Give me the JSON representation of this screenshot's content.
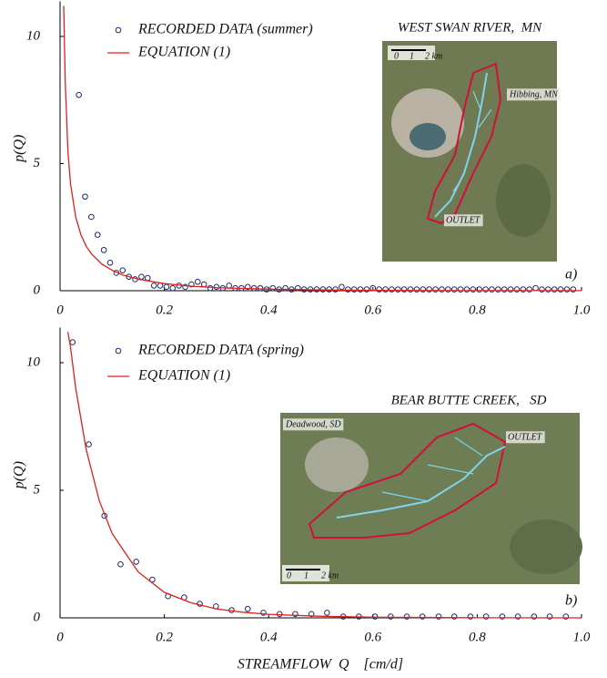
{
  "chart_data": [
    {
      "type": "line",
      "ylabel": "p(Q)",
      "panel_label": "a)",
      "xlim": [
        0,
        1
      ],
      "ylim": [
        0,
        11.2
      ],
      "xticks": [
        0,
        0.2,
        0.4,
        0.6,
        0.8,
        {
          "value": 1,
          "label": "1.0"
        }
      ],
      "yticks": [
        0,
        5,
        10
      ],
      "series": [
        {
          "name": "RECORDED DATA (summer)",
          "mode": "markers",
          "color": "#1f2a6b",
          "x": [
            0.036,
            0.048,
            0.06,
            0.072,
            0.084,
            0.096,
            0.108,
            0.12,
            0.132,
            0.144,
            0.156,
            0.168,
            0.18,
            0.192,
            0.204,
            0.216,
            0.228,
            0.24,
            0.252,
            0.264,
            0.276,
            0.288,
            0.3,
            0.312,
            0.324,
            0.336,
            0.348,
            0.36,
            0.372,
            0.384,
            0.396,
            0.408,
            0.42,
            0.432,
            0.444,
            0.456,
            0.468,
            0.48,
            0.492,
            0.504,
            0.516,
            0.528,
            0.54,
            0.552,
            0.564,
            0.576,
            0.588,
            0.6,
            0.612,
            0.624,
            0.636,
            0.648,
            0.66,
            0.672,
            0.684,
            0.696,
            0.708,
            0.72,
            0.732,
            0.744,
            0.756,
            0.768,
            0.78,
            0.792,
            0.804,
            0.816,
            0.828,
            0.84,
            0.852,
            0.864,
            0.876,
            0.888,
            0.9,
            0.912,
            0.924,
            0.936,
            0.948,
            0.96,
            0.972,
            0.984
          ],
          "values": [
            7.7,
            3.7,
            2.9,
            2.2,
            1.6,
            1.1,
            0.7,
            0.8,
            0.55,
            0.45,
            0.55,
            0.5,
            0.2,
            0.2,
            0.15,
            0.1,
            0.2,
            0.15,
            0.25,
            0.35,
            0.25,
            0.1,
            0.15,
            0.1,
            0.2,
            0.1,
            0.1,
            0.15,
            0.1,
            0.1,
            0.05,
            0.1,
            0.05,
            0.1,
            0.05,
            0.1,
            0.05,
            0.05,
            0.05,
            0.05,
            0.05,
            0.05,
            0.15,
            0.05,
            0.05,
            0.05,
            0.05,
            0.1,
            0.05,
            0.05,
            0.05,
            0.05,
            0.05,
            0.05,
            0.05,
            0.05,
            0.05,
            0.05,
            0.05,
            0.05,
            0.05,
            0.05,
            0.05,
            0.05,
            0.05,
            0.05,
            0.05,
            0.05,
            0.05,
            0.05,
            0.05,
            0.05,
            0.05,
            0.1,
            0.05,
            0.05,
            0.05,
            0.05,
            0.05,
            0.05
          ]
        },
        {
          "name": "EQUATION (1)",
          "mode": "line",
          "color": "#e0201b",
          "x": [
            0.007,
            0.01,
            0.015,
            0.02,
            0.03,
            0.04,
            0.05,
            0.06,
            0.08,
            0.1,
            0.12,
            0.15,
            0.2,
            0.25,
            0.3,
            0.4,
            0.5,
            0.6,
            0.8,
            1.0
          ],
          "values": [
            11.2,
            8.2,
            5.5,
            4.2,
            2.9,
            2.2,
            1.75,
            1.45,
            1.05,
            0.8,
            0.62,
            0.45,
            0.28,
            0.18,
            0.12,
            0.06,
            0.03,
            0.015,
            0.005,
            0.002
          ]
        }
      ],
      "map": {
        "title": "WEST SWAN RIVER,  MN",
        "labels": [
          "Hibbing, MN",
          "OUTLET"
        ],
        "scale": [
          "0",
          "1",
          "2 km"
        ]
      }
    },
    {
      "type": "line",
      "ylabel": "p(Q)",
      "panel_label": "b)",
      "xlabel": "STREAMFLOW  Q    [cm/d]",
      "xlim": [
        0,
        1
      ],
      "ylim": [
        0,
        11.2
      ],
      "xticks": [
        0,
        0.2,
        0.4,
        0.6,
        0.8,
        {
          "value": 1,
          "label": "1.0"
        }
      ],
      "yticks": [
        0,
        5,
        10
      ],
      "series": [
        {
          "name": "RECORDED DATA (spring)",
          "mode": "markers",
          "color": "#1f2a6b",
          "x": [
            0.024,
            0.055,
            0.085,
            0.116,
            0.146,
            0.177,
            0.207,
            0.238,
            0.268,
            0.299,
            0.329,
            0.36,
            0.39,
            0.421,
            0.451,
            0.482,
            0.512,
            0.543,
            0.573,
            0.604,
            0.634,
            0.665,
            0.695,
            0.726,
            0.756,
            0.787,
            0.817,
            0.848,
            0.878,
            0.909,
            0.939,
            0.97
          ],
          "values": [
            10.8,
            6.8,
            4.0,
            2.1,
            2.2,
            1.5,
            0.85,
            0.8,
            0.55,
            0.45,
            0.3,
            0.35,
            0.2,
            0.15,
            0.15,
            0.15,
            0.2,
            0.05,
            0.05,
            0.05,
            0.05,
            0.05,
            0.05,
            0.05,
            0.05,
            0.05,
            0.05,
            0.05,
            0.05,
            0.05,
            0.05,
            0.05
          ]
        },
        {
          "name": "EQUATION (1)",
          "mode": "line",
          "color": "#e0201b",
          "x": [
            0.015,
            0.02,
            0.03,
            0.05,
            0.075,
            0.1,
            0.15,
            0.2,
            0.25,
            0.3,
            0.35,
            0.4,
            0.5,
            0.6,
            0.8,
            1.0
          ],
          "values": [
            11.2,
            10.6,
            9.0,
            6.6,
            4.6,
            3.3,
            1.8,
            1.0,
            0.6,
            0.35,
            0.22,
            0.14,
            0.06,
            0.025,
            0.005,
            0.001
          ]
        }
      ],
      "map": {
        "title": "BEAR BUTTE CREEK,   SD",
        "labels": [
          "Deadwood, SD",
          "OUTLET"
        ],
        "scale": [
          "0",
          "1",
          "2 km"
        ]
      }
    }
  ]
}
